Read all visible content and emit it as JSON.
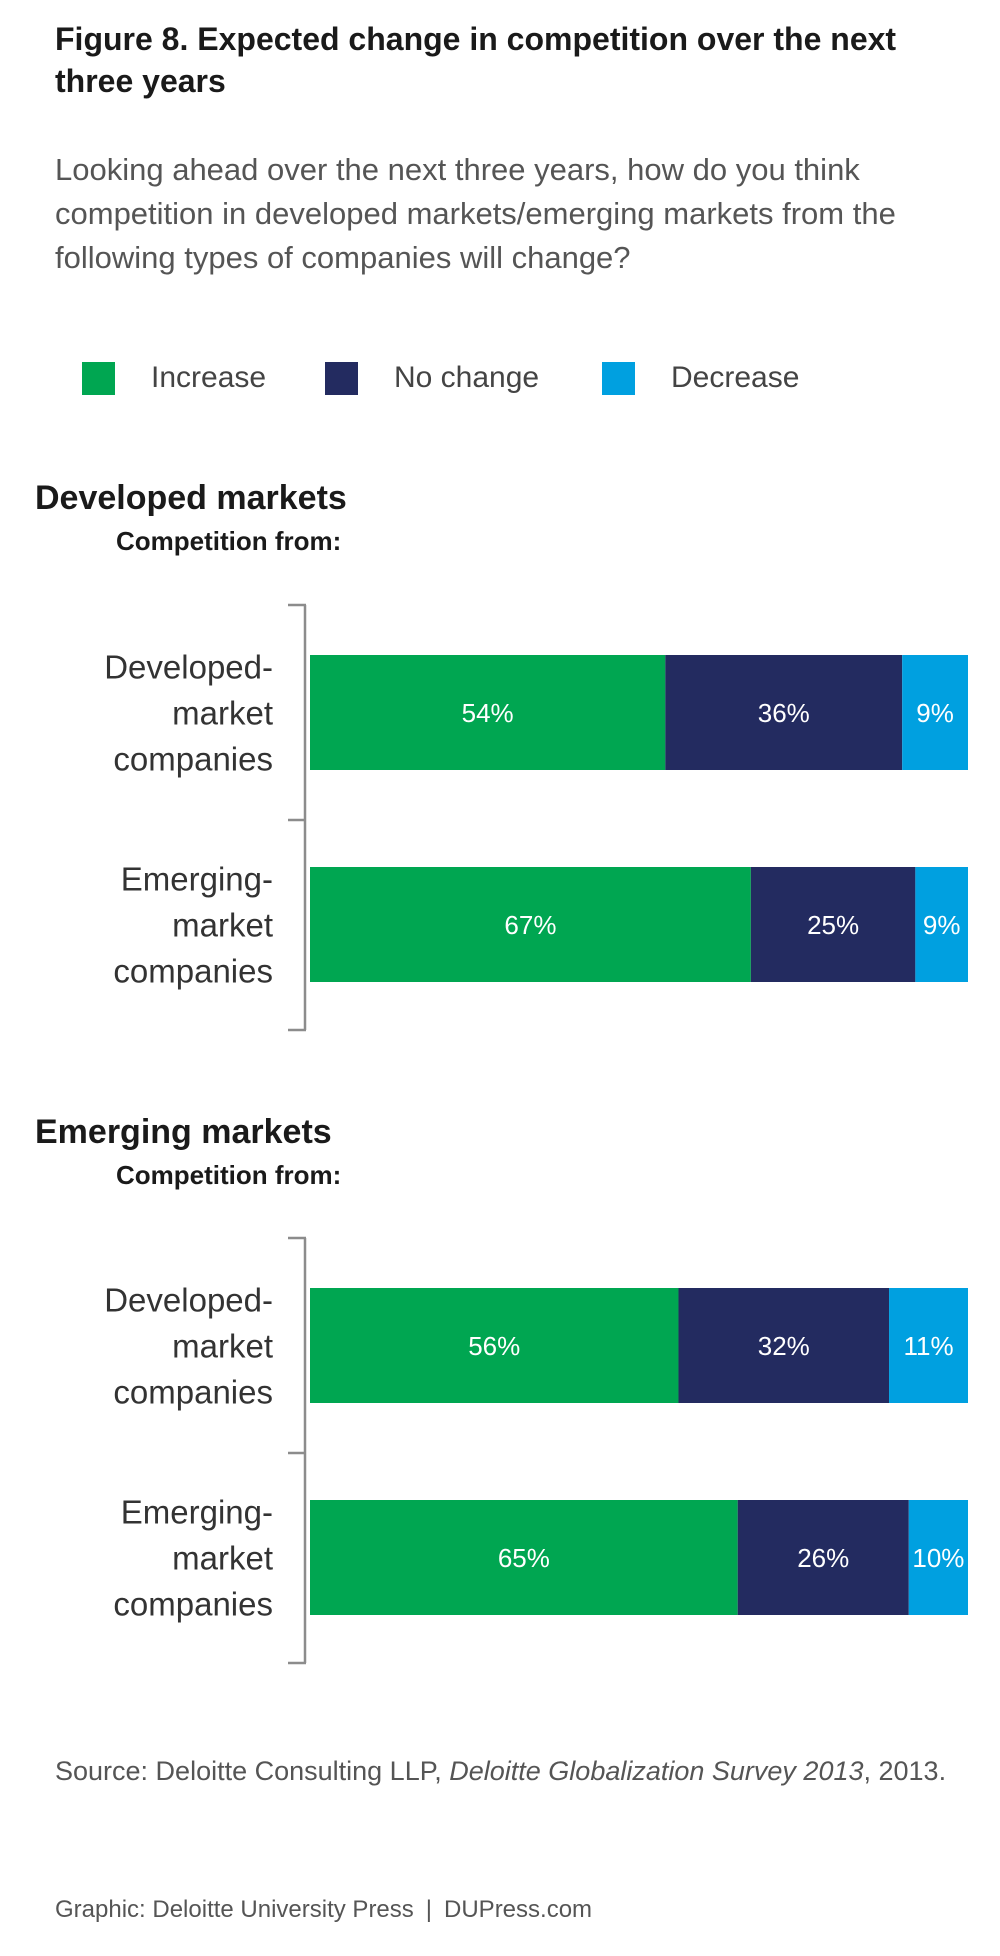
{
  "figure": {
    "title": "Figure 8. Expected change in competition over the next three years",
    "question": "Looking ahead over the next three years, how do you think competition in developed markets/emerging markets from the following types of companies will change?"
  },
  "legend": [
    {
      "label": "Increase",
      "color": "#00a651"
    },
    {
      "label": "No change",
      "color": "#232b60"
    },
    {
      "label": "Decrease",
      "color": "#00a0e0"
    }
  ],
  "chart_data": [
    {
      "type": "bar",
      "orientation": "horizontal",
      "stacked": true,
      "title": "Developed markets",
      "subtitle": "Competition from:",
      "categories": [
        "Developed-market companies",
        "Emerging-market companies"
      ],
      "category_lines": [
        [
          "Developed-",
          "market",
          "companies"
        ],
        [
          "Emerging-",
          "market",
          "companies"
        ]
      ],
      "series": [
        {
          "name": "Increase",
          "values": [
            54,
            67
          ],
          "labels": [
            "54%",
            "67%"
          ]
        },
        {
          "name": "No change",
          "values": [
            36,
            25
          ],
          "labels": [
            "36%",
            "25%"
          ]
        },
        {
          "name": "Decrease",
          "values": [
            9,
            9
          ],
          "labels": [
            "9%",
            "9%"
          ]
        }
      ],
      "xlim": [
        0,
        100
      ],
      "grid": false,
      "legend": "top"
    },
    {
      "type": "bar",
      "orientation": "horizontal",
      "stacked": true,
      "title": "Emerging markets",
      "subtitle": "Competition from:",
      "categories": [
        "Developed-market companies",
        "Emerging-market companies"
      ],
      "category_lines": [
        [
          "Developed-",
          "market",
          "companies"
        ],
        [
          "Emerging-",
          "market",
          "companies"
        ]
      ],
      "series": [
        {
          "name": "Increase",
          "values": [
            56,
            65
          ],
          "labels": [
            "56%",
            "65%"
          ]
        },
        {
          "name": "No change",
          "values": [
            32,
            26
          ],
          "labels": [
            "32%",
            "26%"
          ]
        },
        {
          "name": "Decrease",
          "values": [
            11,
            10
          ],
          "labels": [
            "11%",
            "10%"
          ]
        }
      ],
      "xlim": [
        0,
        100
      ],
      "grid": false,
      "legend": "top"
    }
  ],
  "source": {
    "prefix": "Source: Deloitte Consulting LLP, ",
    "publication": "Deloitte Globalization Survey 2013",
    "suffix": ", 2013."
  },
  "credit": {
    "graphic": "Graphic: Deloitte University Press",
    "separator": "|",
    "site": "DUPress.com"
  }
}
